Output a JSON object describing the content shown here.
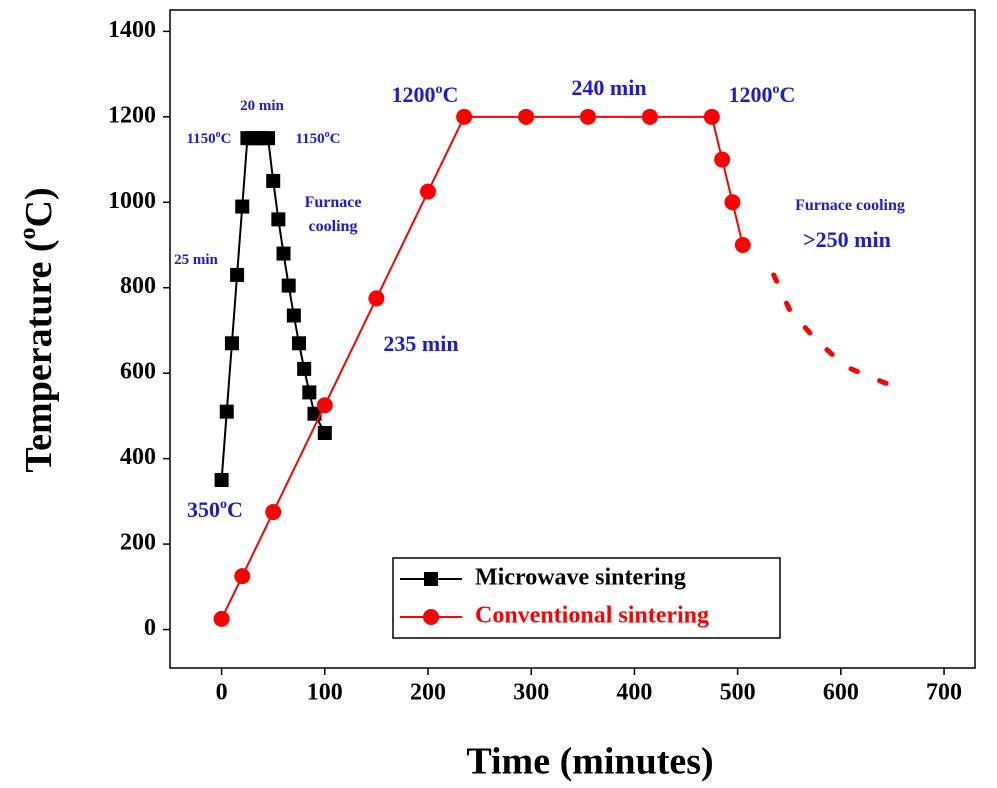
{
  "chart_data": {
    "type": "line",
    "x_label": "Time (minutes)",
    "y_label": [
      "Temperature (",
      "o",
      "C)"
    ],
    "xlim": [
      -50,
      730
    ],
    "xticks": [
      0,
      100,
      200,
      300,
      400,
      500,
      600,
      700
    ],
    "ylim": [
      -90,
      1450
    ],
    "yticks": [
      0,
      200,
      400,
      600,
      800,
      1000,
      1200,
      1400
    ],
    "series": [
      {
        "name": "Microwave sintering",
        "color": "#000000",
        "marker": "square",
        "x": [
          0,
          5,
          10,
          15,
          20,
          25,
          30,
          35,
          40,
          45,
          50,
          55,
          60,
          65,
          70,
          75,
          80,
          85,
          90,
          100
        ],
        "y": [
          350,
          510,
          670,
          830,
          990,
          1150,
          1150,
          1150,
          1150,
          1150,
          1050,
          960,
          880,
          805,
          735,
          670,
          610,
          555,
          505,
          460
        ]
      },
      {
        "name": "Conventional sintering",
        "color": "#ff0000",
        "marker": "circle",
        "x": [
          0,
          20,
          50,
          100,
          150,
          200,
          235,
          295,
          355,
          415,
          475,
          485,
          495,
          505
        ],
        "y": [
          25,
          125,
          275,
          525,
          775,
          1025,
          1200,
          1200,
          1200,
          1200,
          1200,
          1100,
          1000,
          900
        ]
      }
    ],
    "cooling_curve": {
      "color": "#ff0000",
      "x": [
        535,
        550,
        575,
        605,
        640,
        655
      ],
      "y": [
        830,
        750,
        680,
        615,
        580,
        565
      ]
    },
    "annotations": [
      {
        "text": [
          "20 min"
        ],
        "color": "#1c1cd0"
      },
      {
        "text": [
          "1150",
          "o",
          "C"
        ],
        "color": "#1c1cd0"
      },
      {
        "text": [
          "1150",
          "o",
          "C"
        ],
        "color": "#1c1cd0"
      },
      {
        "text": [
          "Furnace"
        ],
        "color": "#1c1cd0"
      },
      {
        "text": [
          "cooling"
        ],
        "color": "#1c1cd0"
      },
      {
        "text": [
          "25 min"
        ],
        "color": "#1c1cd0"
      },
      {
        "text": [
          "350",
          "o",
          "C"
        ],
        "color": "#1c1cd0"
      },
      {
        "text": [
          "1200",
          "o",
          "C"
        ],
        "color": "#1c1cd0"
      },
      {
        "text": [
          "240 min"
        ],
        "color": "#1c1cd0"
      },
      {
        "text": [
          "1200",
          "o",
          "C"
        ],
        "color": "#1c1cd0"
      },
      {
        "text": [
          "235 min"
        ],
        "color": "#1c1cd0"
      },
      {
        "text": [
          "Furnace cooling"
        ],
        "color": "#1c1cd0"
      },
      {
        "text": [
          ">250 min"
        ],
        "color": "#1c1cd0"
      }
    ]
  }
}
